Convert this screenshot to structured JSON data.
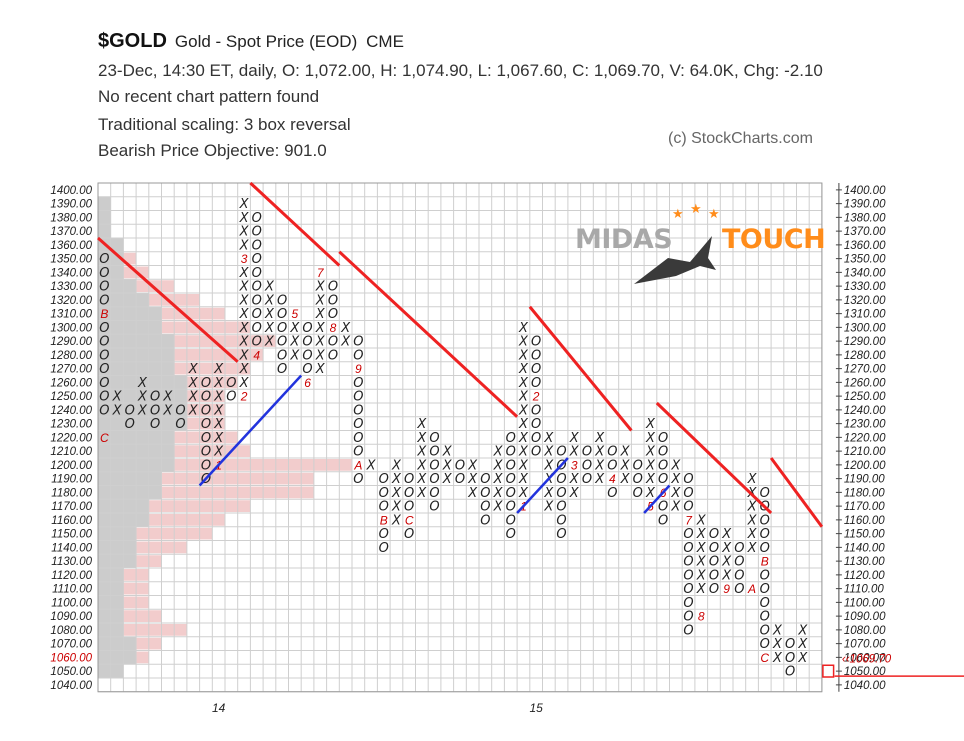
{
  "header": {
    "symbol": "$GOLD",
    "name": "Gold - Spot Price (EOD)",
    "exchange": "CME",
    "quote_line": "23-Dec, 14:30 ET, daily, O: 1,072.00, H: 1,074.90, L: 1,067.60, C: 1,069.70, V: 64.0K, Chg: -2.10",
    "pattern_line": "No recent chart pattern found",
    "scaling_line": "Traditional scaling: 3 box reversal",
    "objective_line": "Bearish Price Objective: 901.0",
    "copyright": "(c) StockCharts.com"
  },
  "watermark": {
    "left": "MIDAS",
    "right": "TOUCH"
  },
  "colors": {
    "x_mark": "#222222",
    "o_mark": "#222222",
    "month": "#cc0000",
    "bear_line": "#ee2222",
    "bull_line": "#2233dd",
    "grid": "#cfcfcf",
    "volume_grey": "#cccccc",
    "volume_pink": "#f2cccc"
  },
  "chart_data": {
    "type": "point-and-figure",
    "box_size": 10,
    "reversal": 3,
    "ylim": [
      1040,
      1400
    ],
    "y_ticks": [
      "1400.00",
      "1390.00",
      "1380.00",
      "1370.00",
      "1360.00",
      "1350.00",
      "1340.00",
      "1330.00",
      "1320.00",
      "1310.00",
      "1300.00",
      "1290.00",
      "1280.00",
      "1270.00",
      "1260.00",
      "1250.00",
      "1240.00",
      "1230.00",
      "1220.00",
      "1210.00",
      "1200.00",
      "1190.00",
      "1180.00",
      "1170.00",
      "1160.00",
      "1150.00",
      "1140.00",
      "1130.00",
      "1120.00",
      "1110.00",
      "1100.00",
      "1090.00",
      "1080.00",
      "1070.00",
      "1060.00",
      "1050.00",
      "1040.00"
    ],
    "highlight_tick_left": "1060.00",
    "last_price_label": "1069.70",
    "x_labels": [
      {
        "col": 9,
        "text": "14"
      },
      {
        "col": 34,
        "text": "15"
      }
    ],
    "columns": [
      {
        "t": "O",
        "top": 1350,
        "bot": 1240
      },
      {
        "t": "X",
        "top": 1250,
        "bot": 1240
      },
      {
        "t": "O",
        "top": 1240,
        "bot": 1230
      },
      {
        "t": "X",
        "top": 1260,
        "bot": 1240
      },
      {
        "t": "O",
        "top": 1250,
        "bot": 1230
      },
      {
        "t": "X",
        "top": 1250,
        "bot": 1240
      },
      {
        "t": "O",
        "top": 1240,
        "bot": 1230
      },
      {
        "t": "X",
        "top": 1270,
        "bot": 1240
      },
      {
        "t": "O",
        "top": 1260,
        "bot": 1190
      },
      {
        "t": "X",
        "top": 1270,
        "bot": 1200
      },
      {
        "t": "O",
        "top": 1260,
        "bot": 1250
      },
      {
        "t": "X",
        "top": 1390,
        "bot": 1260
      },
      {
        "t": "O",
        "top": 1380,
        "bot": 1280
      },
      {
        "t": "X",
        "top": 1330,
        "bot": 1290
      },
      {
        "t": "O",
        "top": 1320,
        "bot": 1270
      },
      {
        "t": "X",
        "top": 1310,
        "bot": 1280
      },
      {
        "t": "O",
        "top": 1300,
        "bot": 1260
      },
      {
        "t": "X",
        "top": 1340,
        "bot": 1270
      },
      {
        "t": "O",
        "top": 1330,
        "bot": 1280
      },
      {
        "t": "X",
        "top": 1300,
        "bot": 1290
      },
      {
        "t": "O",
        "top": 1290,
        "bot": 1190
      },
      {
        "t": "X",
        "top": 1200,
        "bot": 1200
      },
      {
        "t": "O",
        "top": 1190,
        "bot": 1140
      },
      {
        "t": "X",
        "top": 1200,
        "bot": 1160
      },
      {
        "t": "O",
        "top": 1190,
        "bot": 1150
      },
      {
        "t": "X",
        "top": 1230,
        "bot": 1180
      },
      {
        "t": "O",
        "top": 1220,
        "bot": 1170
      },
      {
        "t": "X",
        "top": 1210,
        "bot": 1190
      },
      {
        "t": "O",
        "top": 1200,
        "bot": 1190
      },
      {
        "t": "X",
        "top": 1200,
        "bot": 1180
      },
      {
        "t": "O",
        "top": 1190,
        "bot": 1160
      },
      {
        "t": "X",
        "top": 1210,
        "bot": 1170
      },
      {
        "t": "O",
        "top": 1220,
        "bot": 1150
      },
      {
        "t": "X",
        "top": 1300,
        "bot": 1170
      },
      {
        "t": "O",
        "top": 1290,
        "bot": 1210
      },
      {
        "t": "X",
        "top": 1220,
        "bot": 1170
      },
      {
        "t": "O",
        "top": 1210,
        "bot": 1150
      },
      {
        "t": "X",
        "top": 1220,
        "bot": 1180
      },
      {
        "t": "O",
        "top": 1210,
        "bot": 1190
      },
      {
        "t": "X",
        "top": 1220,
        "bot": 1190
      },
      {
        "t": "O",
        "top": 1210,
        "bot": 1180
      },
      {
        "t": "X",
        "top": 1210,
        "bot": 1190
      },
      {
        "t": "O",
        "top": 1200,
        "bot": 1180
      },
      {
        "t": "X",
        "top": 1230,
        "bot": 1170
      },
      {
        "t": "O",
        "top": 1220,
        "bot": 1160
      },
      {
        "t": "X",
        "top": 1200,
        "bot": 1170
      },
      {
        "t": "O",
        "top": 1190,
        "bot": 1080
      },
      {
        "t": "X",
        "top": 1160,
        "bot": 1110
      },
      {
        "t": "O",
        "top": 1150,
        "bot": 1110
      },
      {
        "t": "X",
        "top": 1150,
        "bot": 1110
      },
      {
        "t": "O",
        "top": 1140,
        "bot": 1110
      },
      {
        "t": "X",
        "top": 1190,
        "bot": 1140
      },
      {
        "t": "O",
        "top": 1180,
        "bot": 1060
      },
      {
        "t": "X",
        "top": 1080,
        "bot": 1060
      },
      {
        "t": "O",
        "top": 1070,
        "bot": 1050
      },
      {
        "t": "X",
        "top": 1080,
        "bot": 1060
      }
    ],
    "month_markers": [
      {
        "col": 0,
        "price": 1310,
        "label": "B"
      },
      {
        "col": 0,
        "price": 1220,
        "label": "C"
      },
      {
        "col": 9,
        "price": 1200,
        "label": "1"
      },
      {
        "col": 11,
        "price": 1250,
        "label": "2"
      },
      {
        "col": 11,
        "price": 1350,
        "label": "3"
      },
      {
        "col": 12,
        "price": 1280,
        "label": "4"
      },
      {
        "col": 15,
        "price": 1310,
        "label": "5"
      },
      {
        "col": 16,
        "price": 1260,
        "label": "6"
      },
      {
        "col": 17,
        "price": 1340,
        "label": "7"
      },
      {
        "col": 18,
        "price": 1300,
        "label": "8"
      },
      {
        "col": 20,
        "price": 1270,
        "label": "9"
      },
      {
        "col": 20,
        "price": 1200,
        "label": "A"
      },
      {
        "col": 22,
        "price": 1160,
        "label": "B"
      },
      {
        "col": 24,
        "price": 1160,
        "label": "C"
      },
      {
        "col": 33,
        "price": 1170,
        "label": "1"
      },
      {
        "col": 34,
        "price": 1250,
        "label": "2"
      },
      {
        "col": 37,
        "price": 1200,
        "label": "3"
      },
      {
        "col": 40,
        "price": 1190,
        "label": "4"
      },
      {
        "col": 43,
        "price": 1170,
        "label": "5"
      },
      {
        "col": 44,
        "price": 1180,
        "label": "6"
      },
      {
        "col": 46,
        "price": 1160,
        "label": "7"
      },
      {
        "col": 47,
        "price": 1090,
        "label": "8"
      },
      {
        "col": 49,
        "price": 1110,
        "label": "9"
      },
      {
        "col": 51,
        "price": 1110,
        "label": "A"
      },
      {
        "col": 52,
        "price": 1130,
        "label": "B"
      },
      {
        "col": 52,
        "price": 1060,
        "label": "C"
      }
    ],
    "volume_profile_grey": [
      {
        "price": 1390,
        "len": 1
      },
      {
        "price": 1380,
        "len": 1
      },
      {
        "price": 1370,
        "len": 1
      },
      {
        "price": 1360,
        "len": 2
      },
      {
        "price": 1350,
        "len": 2
      },
      {
        "price": 1340,
        "len": 2
      },
      {
        "price": 1330,
        "len": 3
      },
      {
        "price": 1320,
        "len": 4
      },
      {
        "price": 1310,
        "len": 5
      },
      {
        "price": 1300,
        "len": 5
      },
      {
        "price": 1290,
        "len": 6
      },
      {
        "price": 1280,
        "len": 6
      },
      {
        "price": 1270,
        "len": 6
      },
      {
        "price": 1260,
        "len": 7
      },
      {
        "price": 1250,
        "len": 7
      },
      {
        "price": 1240,
        "len": 7
      },
      {
        "price": 1230,
        "len": 7
      },
      {
        "price": 1220,
        "len": 6
      },
      {
        "price": 1210,
        "len": 6
      },
      {
        "price": 1200,
        "len": 6
      },
      {
        "price": 1190,
        "len": 5
      },
      {
        "price": 1180,
        "len": 5
      },
      {
        "price": 1170,
        "len": 4
      },
      {
        "price": 1160,
        "len": 4
      },
      {
        "price": 1150,
        "len": 3
      },
      {
        "price": 1140,
        "len": 3
      },
      {
        "price": 1130,
        "len": 3
      },
      {
        "price": 1120,
        "len": 2
      },
      {
        "price": 1110,
        "len": 2
      },
      {
        "price": 1100,
        "len": 2
      },
      {
        "price": 1090,
        "len": 2
      },
      {
        "price": 1080,
        "len": 2
      },
      {
        "price": 1070,
        "len": 3
      },
      {
        "price": 1060,
        "len": 3
      },
      {
        "price": 1050,
        "len": 2
      }
    ],
    "volume_profile_pink": [
      {
        "price": 1360,
        "len": 2
      },
      {
        "price": 1350,
        "len": 3
      },
      {
        "price": 1340,
        "len": 4
      },
      {
        "price": 1330,
        "len": 6
      },
      {
        "price": 1320,
        "len": 8
      },
      {
        "price": 1310,
        "len": 10
      },
      {
        "price": 1300,
        "len": 12
      },
      {
        "price": 1290,
        "len": 14
      },
      {
        "price": 1280,
        "len": 13
      },
      {
        "price": 1270,
        "len": 12
      },
      {
        "price": 1260,
        "len": 11
      },
      {
        "price": 1250,
        "len": 10
      },
      {
        "price": 1240,
        "len": 10
      },
      {
        "price": 1230,
        "len": 10
      },
      {
        "price": 1220,
        "len": 11
      },
      {
        "price": 1210,
        "len": 12
      },
      {
        "price": 1200,
        "len": 20
      },
      {
        "price": 1190,
        "len": 17
      },
      {
        "price": 1180,
        "len": 17
      },
      {
        "price": 1170,
        "len": 12
      },
      {
        "price": 1160,
        "len": 10
      },
      {
        "price": 1150,
        "len": 9
      },
      {
        "price": 1140,
        "len": 7
      },
      {
        "price": 1130,
        "len": 5
      },
      {
        "price": 1120,
        "len": 4
      },
      {
        "price": 1110,
        "len": 4
      },
      {
        "price": 1100,
        "len": 4
      },
      {
        "price": 1090,
        "len": 5
      },
      {
        "price": 1080,
        "len": 7
      },
      {
        "price": 1070,
        "len": 5
      },
      {
        "price": 1060,
        "len": 4
      },
      {
        "price": 1050,
        "len": 2
      }
    ],
    "bear_lines": [
      {
        "c1": 0,
        "p1": 1360,
        "c2": 11,
        "p2": 1270
      },
      {
        "c1": 12,
        "p1": 1400,
        "c2": 19,
        "p2": 1340
      },
      {
        "c1": 19,
        "p1": 1350,
        "c2": 33,
        "p2": 1230
      },
      {
        "c1": 34,
        "p1": 1310,
        "c2": 42,
        "p2": 1220
      },
      {
        "c1": 44,
        "p1": 1240,
        "c2": 53,
        "p2": 1160
      },
      {
        "c1": 53,
        "p1": 1200,
        "c2": 57,
        "p2": 1150
      }
    ],
    "bull_lines": [
      {
        "c1": 8,
        "p1": 1180,
        "c2": 16,
        "p2": 1260
      },
      {
        "c1": 33,
        "p1": 1160,
        "c2": 37,
        "p2": 1200
      },
      {
        "c1": 43,
        "p1": 1160,
        "c2": 45,
        "p2": 1180
      }
    ],
    "last_box": {
      "col": 57,
      "price": 1050
    },
    "current_price_line": 1050
  }
}
